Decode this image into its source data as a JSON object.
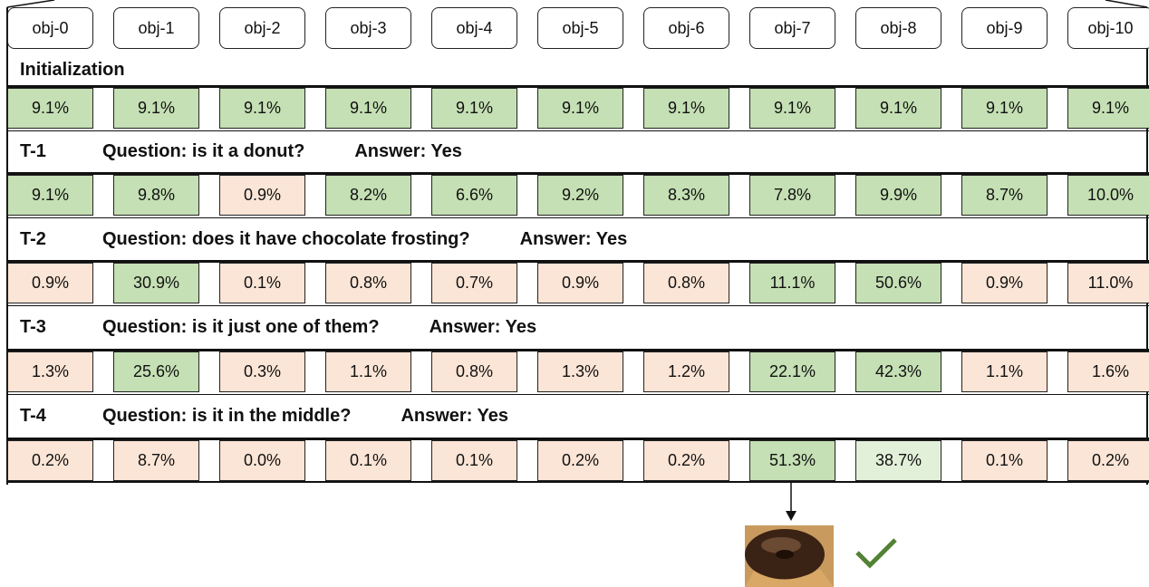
{
  "objects": [
    "obj-0",
    "obj-1",
    "obj-2",
    "obj-3",
    "obj-4",
    "obj-5",
    "obj-6",
    "obj-7",
    "obj-8",
    "obj-9",
    "obj-10"
  ],
  "initialization": {
    "label": "Initialization",
    "values": [
      "9.1%",
      "9.1%",
      "9.1%",
      "9.1%",
      "9.1%",
      "9.1%",
      "9.1%",
      "9.1%",
      "9.1%",
      "9.1%",
      "9.1%"
    ],
    "colors": [
      "#c5e0b4",
      "#c5e0b4",
      "#c5e0b4",
      "#c5e0b4",
      "#c5e0b4",
      "#c5e0b4",
      "#c5e0b4",
      "#c5e0b4",
      "#c5e0b4",
      "#c5e0b4",
      "#c5e0b4"
    ]
  },
  "turns": [
    {
      "label": "T-1",
      "question": "Question: is it a donut?",
      "answer": "Answer: Yes",
      "values": [
        "9.1%",
        "9.8%",
        "0.9%",
        "8.2%",
        "6.6%",
        "9.2%",
        "8.3%",
        "7.8%",
        "9.9%",
        "8.7%",
        "10.0%"
      ],
      "colors": [
        "#c5e0b4",
        "#c5e0b4",
        "#fbe5d6",
        "#c5e0b4",
        "#c5e0b4",
        "#c5e0b4",
        "#c5e0b4",
        "#c5e0b4",
        "#c5e0b4",
        "#c5e0b4",
        "#c5e0b4"
      ]
    },
    {
      "label": "T-2",
      "question": "Question: does it have chocolate frosting?",
      "answer": "Answer: Yes",
      "values": [
        "0.9%",
        "30.9%",
        "0.1%",
        "0.8%",
        "0.7%",
        "0.9%",
        "0.8%",
        "11.1%",
        "50.6%",
        "0.9%",
        "11.0%"
      ],
      "colors": [
        "#fbe5d6",
        "#c5e0b4",
        "#fbe5d6",
        "#fbe5d6",
        "#fbe5d6",
        "#fbe5d6",
        "#fbe5d6",
        "#c5e0b4",
        "#c5e0b4",
        "#fbe5d6",
        "#fbe5d6"
      ]
    },
    {
      "label": "T-3",
      "question": "Question: is it just one of them?",
      "answer": "Answer: Yes",
      "values": [
        "1.3%",
        "25.6%",
        "0.3%",
        "1.1%",
        "0.8%",
        "1.3%",
        "1.2%",
        "22.1%",
        "42.3%",
        "1.1%",
        "1.6%"
      ],
      "colors": [
        "#fbe5d6",
        "#c5e0b4",
        "#fbe5d6",
        "#fbe5d6",
        "#fbe5d6",
        "#fbe5d6",
        "#fbe5d6",
        "#c5e0b4",
        "#c5e0b4",
        "#fbe5d6",
        "#fbe5d6"
      ]
    },
    {
      "label": "T-4",
      "question": "Question: is it in the middle?",
      "answer": "Answer: Yes",
      "values": [
        "0.2%",
        "8.7%",
        "0.0%",
        "0.1%",
        "0.1%",
        "0.2%",
        "0.2%",
        "51.3%",
        "38.7%",
        "0.1%",
        "0.2%"
      ],
      "colors": [
        "#fbe5d6",
        "#fbe5d6",
        "#fbe5d6",
        "#fbe5d6",
        "#fbe5d6",
        "#fbe5d6",
        "#fbe5d6",
        "#c5e0b4",
        "#e2f0d9",
        "#fbe5d6",
        "#fbe5d6"
      ]
    }
  ]
}
